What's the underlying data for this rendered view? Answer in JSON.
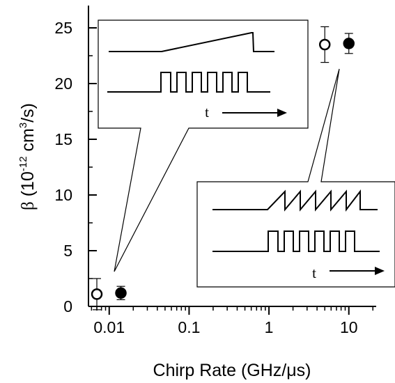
{
  "chart_data": {
    "type": "scatter",
    "xscale": "log",
    "xlim": [
      0.0055,
      22
    ],
    "ylim": [
      0,
      27
    ],
    "xlabel": "Chirp Rate (GHz/μs)",
    "ylabel": {
      "prefix": "β",
      "paren_open": " (10",
      "exp1": "-12",
      "mid": " cm",
      "exp2": "3",
      "suffix": "/s)"
    },
    "x_ticks": [
      "0.01",
      "0.1",
      "1",
      "10"
    ],
    "y_ticks": [
      "0",
      "5",
      "10",
      "15",
      "20",
      "25"
    ],
    "series": [
      {
        "marker": "open-circle",
        "points": [
          {
            "x": 0.007,
            "y": 1.1,
            "err": 1.4
          },
          {
            "x": 5.0,
            "y": 23.5,
            "err": 1.6
          }
        ]
      },
      {
        "marker": "filled-circle",
        "points": [
          {
            "x": 0.014,
            "y": 1.2,
            "err": 0.6
          },
          {
            "x": 10.0,
            "y": 23.6,
            "err": 0.9
          }
        ]
      }
    ],
    "insets": [
      {
        "t_label": "t",
        "upper_trace": "single linear chirp ramp",
        "lower_trace": "pulse train",
        "points_to": "low chirp rate data"
      },
      {
        "t_label": "t",
        "upper_trace": "repeated sawtooth chirps",
        "lower_trace": "pulse train",
        "points_to": "high chirp rate data"
      }
    ]
  }
}
